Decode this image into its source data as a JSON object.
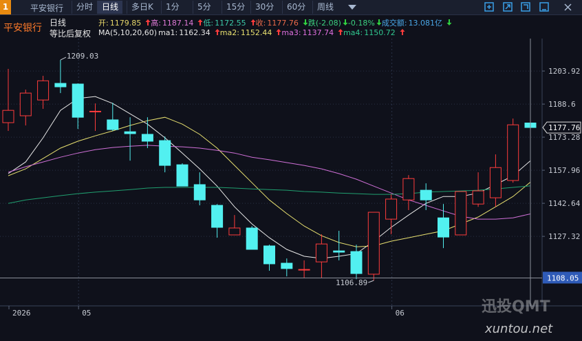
{
  "toolbar": {
    "badge": "1",
    "stock": "平安银行",
    "tabs": [
      "分时",
      "日线",
      "多日K",
      "1分",
      "5分",
      "15分",
      "30分",
      "60分",
      "周线"
    ],
    "active_tab": 1
  },
  "info": {
    "stock_name": "平安银行",
    "period": "日线",
    "adjust": "等比后复权",
    "line1": [
      {
        "text": "开:",
        "value": "1179.85",
        "color": "#e8d86a"
      },
      {
        "arrow": "up",
        "text": "高:",
        "value": "1187.14",
        "color": "#e07ad8"
      },
      {
        "arrow": "up",
        "text": "低:",
        "value": "1172.55",
        "color": "#3cc8a8"
      },
      {
        "arrow": "up",
        "text": "收:",
        "value": "1177.76",
        "color": "#ec6a4a"
      },
      {
        "arrow": "down",
        "text": "跌(-2.08)",
        "color": "#3cd080"
      },
      {
        "arrow": "down",
        "text": "-0.18%",
        "color": "#3cd080"
      },
      {
        "arrow": "down",
        "text": "成交额:",
        "value": "13.081亿",
        "color": "#4aa8e8"
      },
      {
        "arrow": "down"
      }
    ],
    "line2": [
      {
        "text": "MA(5,10,20,60)",
        "color": "#e8e8e8"
      },
      {
        "text": "ma1:",
        "value": "1162.34",
        "color": "#e8e8e8"
      },
      {
        "arrow": "up",
        "text": "ma2:",
        "value": "1152.44",
        "color": "#e8e070"
      },
      {
        "arrow": "up",
        "text": "ma3:",
        "value": "1137.74",
        "color": "#e070e0"
      },
      {
        "arrow": "up",
        "text": "ma4:",
        "value": "1150.72",
        "color": "#30c890"
      },
      {
        "arrow": "up"
      }
    ]
  },
  "watermark": {
    "brand": "迅投QMT",
    "url": "xuntou.net"
  },
  "chart_data": {
    "type": "candlestick",
    "categories": [
      "2026",
      null,
      null,
      null,
      "05",
      null,
      null,
      null,
      null,
      null,
      null,
      null,
      null,
      null,
      null,
      null,
      null,
      null,
      null,
      null,
      null,
      null,
      "06",
      null,
      null,
      null,
      null,
      null,
      null,
      null,
      null
    ],
    "open": [
      1180.0,
      1183.2,
      1190.5,
      1198.2,
      1197.9,
      1185.0,
      1181.3,
      1175.8,
      1174.6,
      1171.7,
      1160.5,
      1151.3,
      1141.7,
      1128.0,
      1131.2,
      1122.9,
      1114.9,
      1111.7,
      1115.5,
      1120.6,
      1120.3,
      1109.8,
      1135.3,
      1144.2,
      1148.7,
      1135.9,
      1128.0,
      1142.3,
      1145.2,
      1153.2,
      1179.85
    ],
    "high": [
      1204.9,
      1195.3,
      1201.7,
      1209.03,
      1198.2,
      1188.9,
      1189.2,
      1182.5,
      1182.5,
      1173.6,
      1161.2,
      1157.0,
      1142.3,
      1137.2,
      1132.1,
      1123.5,
      1117.1,
      1116.2,
      1128.3,
      1129.9,
      1123.5,
      1138.5,
      1146.8,
      1155.7,
      1151.9,
      1142.3,
      1148.1,
      1157.0,
      1165.3,
      1181.9,
      1187.14
    ],
    "low": [
      1176.2,
      1178.7,
      1186.4,
      1193.7,
      1177.1,
      1176.2,
      1176.2,
      1162.4,
      1168.2,
      1157.0,
      1150.6,
      1141.7,
      1126.7,
      1128.0,
      1121.3,
      1111.4,
      1108.8,
      1107.9,
      1108.2,
      1116.2,
      1107.5,
      1106.89,
      1128.3,
      1139.5,
      1139.5,
      1121.9,
      1128.0,
      1141.0,
      1141.0,
      1152.2,
      1172.55
    ],
    "close": [
      1185.7,
      1193.7,
      1199.4,
      1196.6,
      1182.5,
      1185.3,
      1176.8,
      1174.9,
      1171.4,
      1160.2,
      1150.6,
      1144.2,
      1131.5,
      1131.2,
      1121.3,
      1114.6,
      1112.4,
      1112.0,
      1123.8,
      1120.0,
      1110.1,
      1138.5,
      1144.6,
      1154.1,
      1144.2,
      1127.0,
      1148.1,
      1148.4,
      1159.2,
      1179.0,
      1177.76
    ],
    "ma_lines": [
      {
        "color": "#e8e8e8",
        "values": [
          1156.4,
          1161.8,
          1173.0,
          1185.7,
          1191.2,
          1192.1,
          1188.9,
          1184.1,
          1179.3,
          1173.0,
          1165.9,
          1158.6,
          1150.6,
          1141.0,
          1133.1,
          1126.7,
          1121.3,
          1118.1,
          1117.1,
          1118.1,
          1119.3,
          1125.1,
          1131.5,
          1137.2,
          1142.6,
          1145.8,
          1145.8,
          1147.4,
          1151.3,
          1155.4,
          1162.34
        ]
      },
      {
        "color": "#e8e070",
        "values": [
          1155.4,
          1158.6,
          1163.4,
          1168.2,
          1171.4,
          1173.9,
          1176.2,
          1178.7,
          1180.9,
          1182.5,
          1179.3,
          1174.6,
          1168.2,
          1160.2,
          1152.2,
          1144.2,
          1137.9,
          1132.1,
          1127.6,
          1124.5,
          1122.5,
          1122.9,
          1125.1,
          1126.7,
          1128.3,
          1129.9,
          1133.1,
          1136.3,
          1141.0,
          1145.8,
          1152.44
        ]
      },
      {
        "color": "#d070d8",
        "values": [
          1157.0,
          1159.6,
          1161.8,
          1164.0,
          1165.9,
          1167.5,
          1168.5,
          1169.1,
          1169.5,
          1169.1,
          1168.8,
          1168.2,
          1167.2,
          1165.9,
          1164.0,
          1162.8,
          1161.5,
          1160.2,
          1158.6,
          1156.4,
          1153.8,
          1150.6,
          1147.4,
          1144.2,
          1141.7,
          1139.1,
          1136.6,
          1135.3,
          1135.3,
          1135.9,
          1137.74
        ]
      },
      {
        "color": "#20a070",
        "values": [
          1142.6,
          1144.2,
          1145.2,
          1146.2,
          1147.1,
          1147.8,
          1148.4,
          1149.0,
          1149.7,
          1150.0,
          1150.0,
          1150.0,
          1150.0,
          1149.7,
          1149.3,
          1149.0,
          1148.7,
          1148.1,
          1147.8,
          1147.4,
          1147.1,
          1146.8,
          1146.8,
          1147.1,
          1147.8,
          1148.1,
          1148.4,
          1148.7,
          1149.3,
          1150.0,
          1150.72
        ]
      }
    ],
    "up_color": "#ff3c3c",
    "down_color": "#52f0f0",
    "ylim": [
      1096.4,
      1229.8
    ],
    "yticks": [
      1203.92,
      1188.6,
      {
        "value": 1173.28,
        "label": "1173.28"
      },
      1157.96,
      1142.64,
      1127.32
    ],
    "grid": true,
    "max_label": "1209.03",
    "min_label": "1106.89",
    "crosshair": {
      "value": 1108.05
    }
  }
}
